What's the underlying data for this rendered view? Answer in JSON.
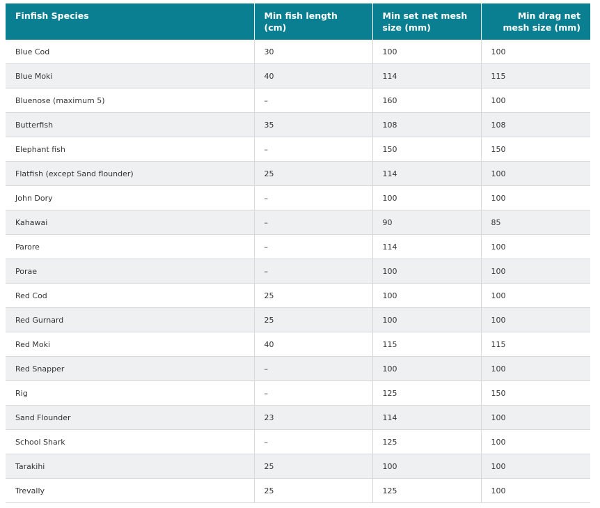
{
  "table": {
    "headers": [
      "Finfish Species",
      "Min fish length (cm)",
      "Min set net mesh size (mm)",
      "Min drag net mesh size (mm)"
    ],
    "rows": [
      [
        "Blue Cod",
        30,
        100,
        100
      ],
      [
        "Blue Moki",
        40,
        114,
        115
      ],
      [
        "Bluenose (maximum 5)",
        "–",
        160,
        100
      ],
      [
        "Butterfish",
        35,
        108,
        108
      ],
      [
        "Elephant fish",
        "–",
        150,
        150
      ],
      [
        "Flatfish (except Sand flounder)",
        25,
        114,
        100
      ],
      [
        "John Dory",
        "–",
        100,
        100
      ],
      [
        "Kahawai",
        "–",
        90,
        85
      ],
      [
        "Parore",
        "–",
        114,
        100
      ],
      [
        "Porae",
        "–",
        100,
        100
      ],
      [
        "Red Cod",
        25,
        100,
        100
      ],
      [
        "Red Gurnard",
        25,
        100,
        100
      ],
      [
        "Red Moki",
        40,
        115,
        115
      ],
      [
        "Red Snapper",
        "–",
        100,
        100
      ],
      [
        "Rig",
        "–",
        125,
        150
      ],
      [
        "Sand Flounder",
        23,
        114,
        100
      ],
      [
        "School Shark",
        "–",
        125,
        100
      ],
      [
        "Tarakihi",
        25,
        100,
        100
      ],
      [
        "Trevally",
        25,
        125,
        100
      ]
    ]
  }
}
